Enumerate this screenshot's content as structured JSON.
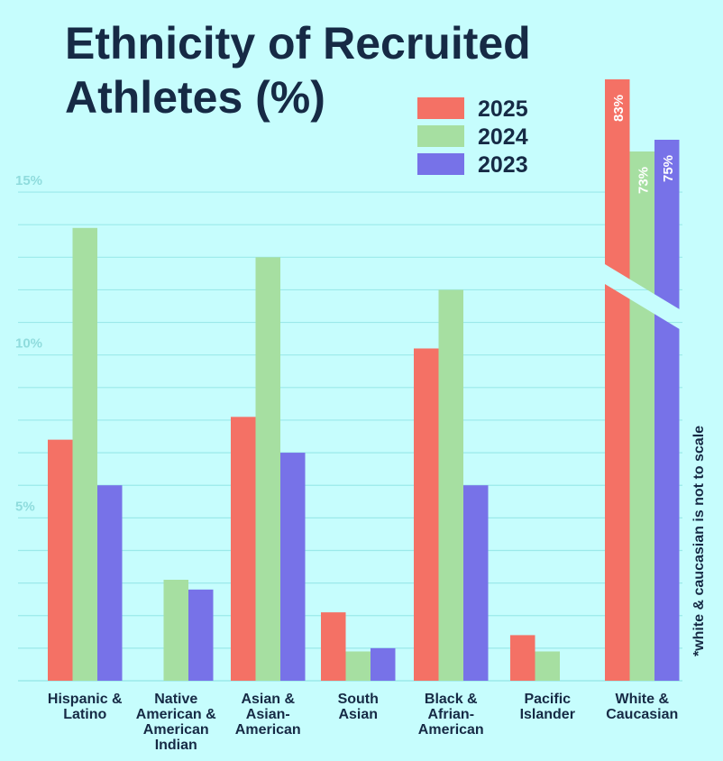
{
  "title_line1": "Ethnicity of Recruited",
  "title_line2": "Athletes (%)",
  "note": "*white & caucasian is not to scale",
  "colors": {
    "2025": "#f47165",
    "2024": "#a6dfa1",
    "2023": "#7772e8",
    "grid": "#9be9ea",
    "tick": "#8fdcdd",
    "text": "#162a45"
  },
  "chart_data": {
    "type": "bar",
    "title": "Ethnicity of Recruited Athletes (%)",
    "categories": [
      [
        "Hispanic &",
        "Latino"
      ],
      [
        "Native",
        "American &",
        "American",
        "Indian"
      ],
      [
        "Asian &",
        "Asian-",
        "American"
      ],
      [
        "South",
        "Asian"
      ],
      [
        "Black &",
        "Afrian-",
        "American"
      ],
      [
        "Pacific",
        "Islander"
      ],
      [
        "White &",
        "Caucasian"
      ]
    ],
    "series": [
      {
        "name": "2025",
        "values": [
          7.4,
          0,
          8.1,
          2.1,
          10.2,
          1.4,
          83
        ]
      },
      {
        "name": "2024",
        "values": [
          13.9,
          3.1,
          13.0,
          0.9,
          12.0,
          0.9,
          73
        ]
      },
      {
        "name": "2023",
        "values": [
          6.0,
          2.8,
          7.0,
          1.0,
          6.0,
          0,
          75
        ]
      }
    ],
    "data_labels": {
      "White & Caucasian": [
        "83%",
        "73%",
        "75%"
      ]
    },
    "yticks": [
      {
        "value": 5,
        "label": "5%"
      },
      {
        "value": 10,
        "label": "10%"
      },
      {
        "value": 15,
        "label": "15%"
      }
    ],
    "ylim": [
      0,
      15.4
    ],
    "axis_break": "White & Caucasian (not to scale)",
    "legend": {
      "position": "top-right",
      "entries": [
        "2025",
        "2024",
        "2023"
      ]
    },
    "grid": true
  }
}
